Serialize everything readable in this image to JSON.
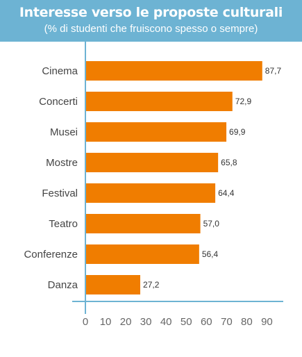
{
  "header": {
    "title": "Interesse verso le proposte culturali",
    "subtitle": "(% di studenti che fruiscono spesso o sempre)"
  },
  "colors": {
    "header_bg": "#6db3d3",
    "bar": "#f07d00",
    "axis": "#6db3d3"
  },
  "chart_data": {
    "type": "bar",
    "orientation": "horizontal",
    "title": "Interesse verso le proposte culturali",
    "subtitle": "(% di studenti che fruiscono spesso o sempre)",
    "xlabel": "",
    "ylabel": "",
    "categories": [
      "Cinema",
      "Concerti",
      "Musei",
      "Mostre",
      "Festival",
      "Teatro",
      "Conferenze",
      "Danza"
    ],
    "values": [
      87.7,
      72.9,
      69.9,
      65.8,
      64.4,
      57.0,
      56.4,
      27.2
    ],
    "value_labels": [
      "87,7",
      "72,9",
      "69,9",
      "65,8",
      "64,4",
      "57,0",
      "56,4",
      "27,2"
    ],
    "xlim": [
      0,
      100
    ],
    "xticks": [
      0,
      10,
      20,
      30,
      40,
      50,
      60,
      70,
      80,
      90
    ],
    "grid": false,
    "legend": "none"
  }
}
